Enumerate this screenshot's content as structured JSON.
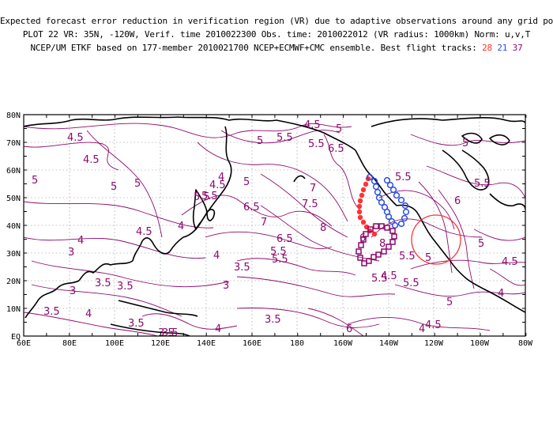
{
  "header": {
    "line1": "Expected forecast error reduction in verification region (VR) due to adaptive observations around any grid point.",
    "line2": "PLOT 22 VR: 35N, -120W, Verif. time 2010022300 Obs. time: 2010022012 (VR radius: 1000km) Norm: u,v,T",
    "line3_prefix": "NCEP/UM ETKF based on 177-member 2010021700 NCEP+ECMWF+CMC ensemble. Best flight tracks:",
    "track_ids": [
      "28",
      "21",
      "37"
    ]
  },
  "map": {
    "lat_range": [
      0,
      80
    ],
    "lon_range": [
      60,
      280
    ],
    "x_tick_labels": [
      "60E",
      "80E",
      "100E",
      "120E",
      "140E",
      "160E",
      "180",
      "160W",
      "140W",
      "120W",
      "100W",
      "80W"
    ],
    "y_tick_labels": [
      "EQ",
      "10N",
      "20N",
      "30N",
      "40N",
      "50N",
      "60N",
      "70N",
      "80N"
    ],
    "grid": true,
    "contour_color": "#8c0a6e",
    "coast_color": "#000000",
    "contour_labels": [
      "4.5",
      "4.5",
      "5",
      "5",
      "4.5",
      "5",
      "5.5",
      "6.5",
      "5.5",
      "5",
      "5.5",
      "6",
      "5.5",
      "5",
      "5.5",
      "5",
      "5",
      "4.5",
      "4",
      "4",
      "4.5",
      "4",
      "5.5",
      "6.5",
      "7",
      "7.5",
      "7",
      "8",
      "5.5",
      "6.5",
      "5.5",
      "5.5",
      "6",
      "8",
      "5.5",
      "3",
      "3",
      "3.5",
      "3.5",
      "4",
      "4",
      "3",
      "3.5",
      "3.5",
      "5",
      "5.5",
      "5",
      "5",
      "4.5",
      "3.5",
      "3.5",
      "4",
      "4.5",
      "4",
      "6",
      "4.5",
      "3.5",
      "4",
      "3.5"
    ],
    "verification_region": {
      "lat": 35,
      "lon": -120,
      "radius_km": 1000,
      "color": "#ff3333"
    },
    "tracks": [
      {
        "id": "28",
        "color": "#ff3333",
        "marker": "filled-circle"
      },
      {
        "id": "21",
        "color": "#2d4fe0",
        "marker": "open-circle"
      },
      {
        "id": "37",
        "color": "#8c0a6e",
        "marker": "open-square"
      }
    ]
  }
}
